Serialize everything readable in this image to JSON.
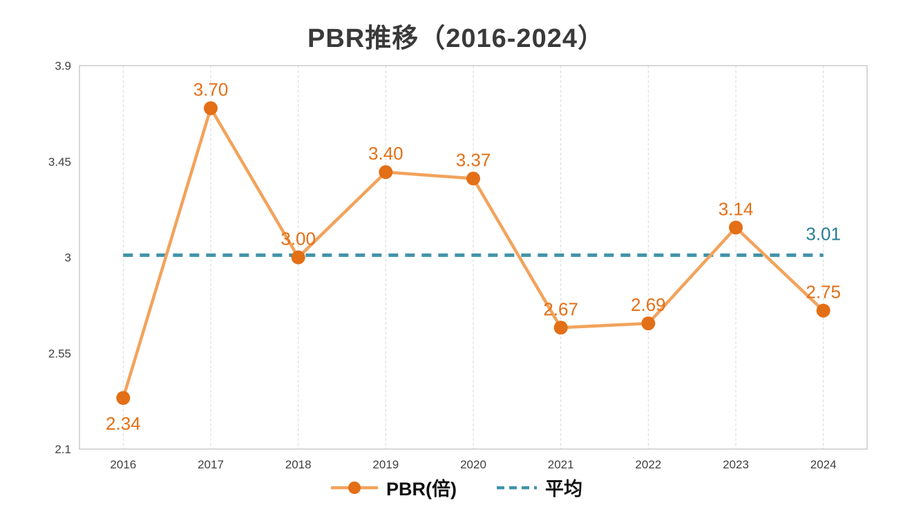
{
  "chart_data": {
    "type": "line",
    "title": "PBR推移（2016-2024）",
    "categories": [
      "2016",
      "2017",
      "2018",
      "2019",
      "2020",
      "2021",
      "2022",
      "2023",
      "2024"
    ],
    "series": [
      {
        "name": "PBR(倍)",
        "values": [
          2.34,
          3.7,
          3.0,
          3.4,
          3.37,
          2.67,
          2.69,
          3.14,
          2.75
        ],
        "color": "#f2a35c",
        "marker_color": "#e36f16",
        "label_color": "#e36f16"
      },
      {
        "name": "平均",
        "type": "reference-line",
        "value": 3.01,
        "color": "#4193a9",
        "label_color": "#287e96"
      }
    ],
    "data_labels": [
      "2.34",
      "3.70",
      "3.00",
      "3.40",
      "3.37",
      "2.67",
      "2.69",
      "3.14",
      "2.75"
    ],
    "label_positions": [
      "below",
      "above",
      "above",
      "above",
      "above",
      "above",
      "above",
      "above",
      "above"
    ],
    "average_label": "3.01",
    "xlabel": "",
    "ylabel": "",
    "ylim": [
      2.1,
      3.9
    ],
    "yticks": [
      3.9,
      3.45,
      3,
      2.55,
      2.1
    ],
    "ytick_labels": [
      "3.9",
      "3.45",
      "3",
      "2.55",
      "2.1"
    ],
    "grid": "vertical-dashed",
    "legend_position": "bottom",
    "colors": {
      "grid": "#d9d9d9",
      "plot_border": "#cccccc",
      "axis_text": "#404040",
      "background": "#ffffff"
    }
  }
}
